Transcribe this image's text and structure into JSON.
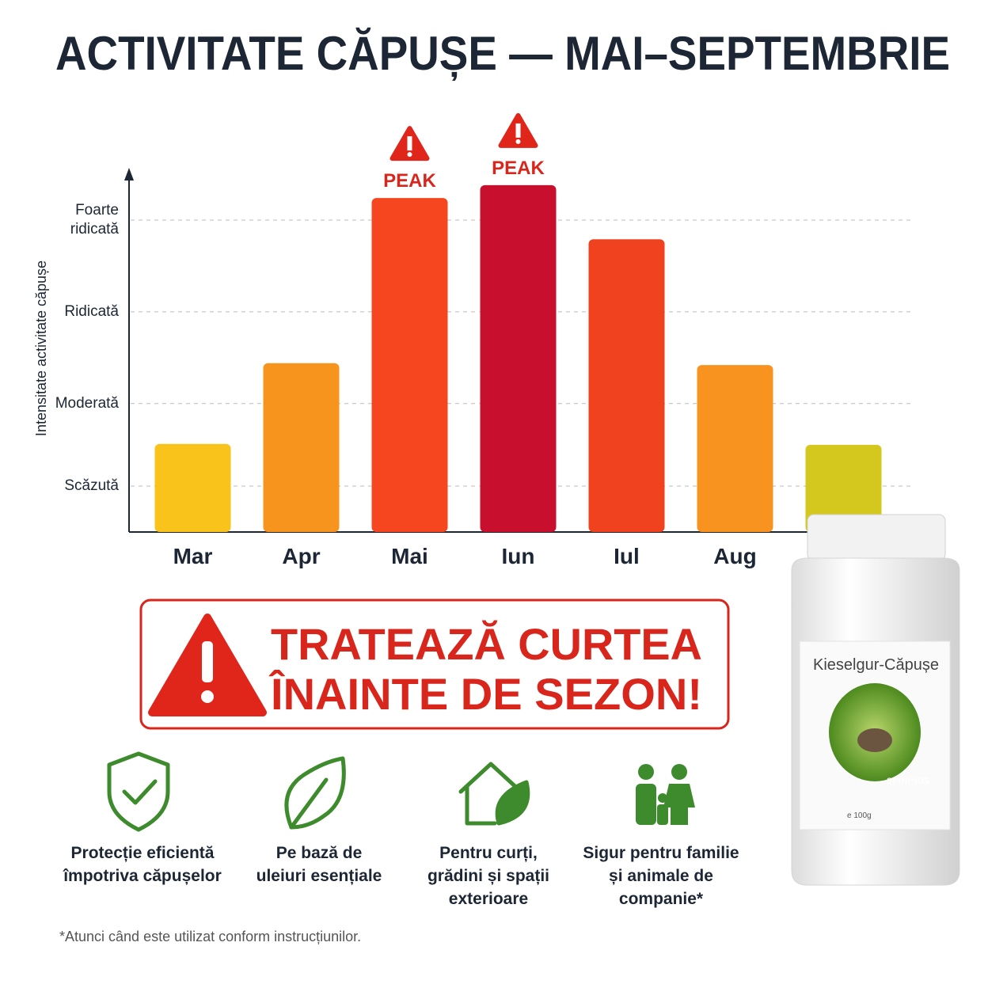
{
  "chart_data": {
    "type": "bar",
    "title": "ACTIVITATE CĂPUȘE — MAI–SEPTEMBRIE",
    "y_label": "Intensitate activitate căpușe",
    "categories": [
      "Mar",
      "Apr",
      "Mai",
      "Iun",
      "Iul",
      "Aug",
      null
    ],
    "values": [
      0.96,
      1.84,
      3.64,
      3.78,
      3.19,
      1.82,
      0.95
    ],
    "colors": [
      "#f9c31c",
      "#f7941d",
      "#f5461f",
      "#c8102e",
      "#f0421e",
      "#f7931e",
      "#d4c81e"
    ],
    "ylim": [
      0,
      3.9
    ],
    "yticks": [
      {
        "value": 0.5,
        "label": "Scăzută"
      },
      {
        "value": 1.4,
        "label": "Moderată"
      },
      {
        "value": 2.4,
        "label": "Ridicată"
      },
      {
        "value": 3.4,
        "label": "Foarte ridicată"
      }
    ],
    "grid": true,
    "annotations": [
      "PEAK",
      "PEAK"
    ]
  },
  "banner": {
    "lines": [
      "TRATEAZĂ CURTEA",
      "ÎNAINTE DE SEZON!"
    ]
  },
  "features": [
    "Protecție eficientă împotriva căpușelor",
    "Pe bază de uleiuri esențiale",
    "Pentru curți, grădini și spații exterioare",
    "Sigur pentru familie și animale de companie*"
  ],
  "footnote": "*Atunci când este utilizat conform instrucțiunilor.",
  "product": {
    "name": "Kieselgur-Căpușe",
    "brand": "semPlus",
    "weight": "e 100g"
  }
}
